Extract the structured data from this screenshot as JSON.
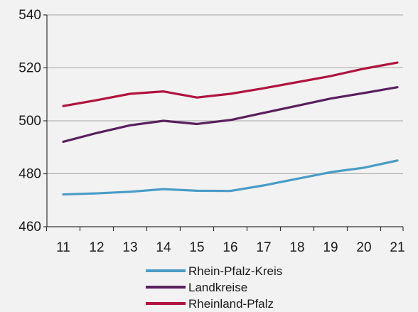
{
  "chart_data": {
    "type": "line",
    "x": [
      "11",
      "12",
      "13",
      "14",
      "15",
      "16",
      "17",
      "18",
      "19",
      "20",
      "21"
    ],
    "series": [
      {
        "name": "Rhein-Pfalz-Kreis",
        "color": "#4a9cc6",
        "values": [
          472.2,
          472.6,
          473.2,
          474.2,
          473.6,
          473.5,
          475.6,
          478.1,
          480.6,
          482.3,
          485.0
        ]
      },
      {
        "name": "Landkreise",
        "color": "#5a1f5e",
        "values": [
          492.1,
          495.4,
          498.3,
          500.0,
          498.8,
          500.3,
          503.0,
          505.7,
          508.4,
          510.5,
          512.7
        ]
      },
      {
        "name": "Rheinland-Pfalz",
        "color": "#b0133f",
        "values": [
          505.6,
          507.8,
          510.2,
          511.1,
          508.8,
          510.2,
          512.3,
          514.6,
          516.9,
          519.7,
          522.0
        ]
      }
    ],
    "y_ticks": [
      "460",
      "480",
      "500",
      "520",
      "540"
    ],
    "ylim": [
      460,
      540
    ],
    "grid": "horizontal",
    "legend": "bottom"
  }
}
